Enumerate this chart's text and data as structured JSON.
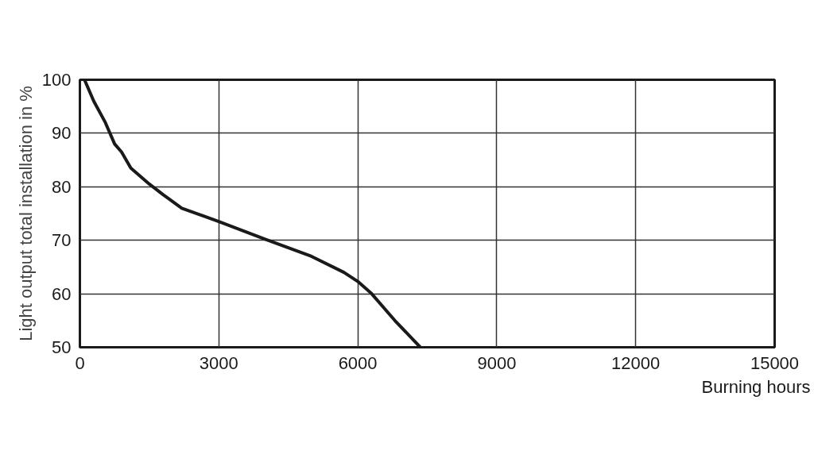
{
  "chart_data": {
    "type": "line",
    "xlabel": "Burning hours",
    "ylabel": "Light output total installation in %",
    "series": [
      {
        "color": "#1a1a1a",
        "x": [
          100,
          300,
          550,
          750,
          900,
          1100,
          1500,
          1800,
          2200,
          3000,
          4000,
          5000,
          5700,
          6000,
          6300,
          6800,
          7350
        ],
        "values": [
          100,
          96,
          92,
          88,
          86.5,
          83.5,
          80.5,
          78.5,
          76,
          73.5,
          70.2,
          67,
          64,
          62.3,
          60,
          55,
          50
        ]
      }
    ],
    "xlim": [
      0,
      15000
    ],
    "xticks": [
      0,
      3000,
      6000,
      9000,
      12000,
      15000
    ],
    "ylim": [
      50,
      100
    ],
    "yticks": [
      50,
      60,
      70,
      80,
      90,
      100
    ],
    "grid": true,
    "marker": "none",
    "line_style": "solid"
  }
}
